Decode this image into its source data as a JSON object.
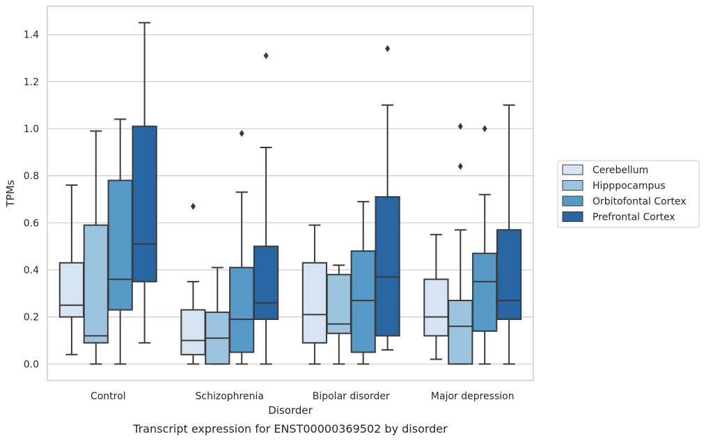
{
  "chart_data": {
    "type": "box",
    "caption": "Transcript expression for ENST00000369502 by disorder",
    "xlabel": "Disorder",
    "ylabel": "TPMs",
    "ylim": [
      -0.07,
      1.52
    ],
    "yticks": [
      "0.0",
      "0.2",
      "0.4",
      "0.6",
      "0.8",
      "1.0",
      "1.2",
      "1.4"
    ],
    "grid": "horizontal",
    "legend_position": "right",
    "categories": [
      "Control",
      "Schizophrenia",
      "Bipolar disorder",
      "Major depression"
    ],
    "series": [
      {
        "name": "Cerebellum",
        "color": "#d6e4f2",
        "boxes": [
          {
            "whisker_low": 0.04,
            "q1": 0.2,
            "median": 0.25,
            "q3": 0.43,
            "whisker_high": 0.76,
            "outliers": []
          },
          {
            "whisker_low": 0.0,
            "q1": 0.04,
            "median": 0.1,
            "q3": 0.23,
            "whisker_high": 0.35,
            "outliers": [
              0.67
            ]
          },
          {
            "whisker_low": 0.0,
            "q1": 0.09,
            "median": 0.21,
            "q3": 0.43,
            "whisker_high": 0.59,
            "outliers": []
          },
          {
            "whisker_low": 0.02,
            "q1": 0.12,
            "median": 0.2,
            "q3": 0.36,
            "whisker_high": 0.55,
            "outliers": []
          }
        ]
      },
      {
        "name": "Hipppocampus",
        "color": "#9cc4de",
        "boxes": [
          {
            "whisker_low": 0.0,
            "q1": 0.09,
            "median": 0.12,
            "q3": 0.59,
            "whisker_high": 0.99,
            "outliers": []
          },
          {
            "whisker_low": 0.0,
            "q1": 0.0,
            "median": 0.11,
            "q3": 0.22,
            "whisker_high": 0.41,
            "outliers": []
          },
          {
            "whisker_low": 0.0,
            "q1": 0.13,
            "median": 0.17,
            "q3": 0.38,
            "whisker_high": 0.42,
            "outliers": []
          },
          {
            "whisker_low": 0.0,
            "q1": 0.0,
            "median": 0.16,
            "q3": 0.27,
            "whisker_high": 0.57,
            "outliers": [
              0.84,
              1.01
            ]
          }
        ]
      },
      {
        "name": "Orbitofontal Cortex",
        "color": "#5599c7",
        "boxes": [
          {
            "whisker_low": 0.0,
            "q1": 0.23,
            "median": 0.36,
            "q3": 0.78,
            "whisker_high": 1.04,
            "outliers": []
          },
          {
            "whisker_low": 0.0,
            "q1": 0.05,
            "median": 0.19,
            "q3": 0.41,
            "whisker_high": 0.73,
            "outliers": [
              0.98
            ]
          },
          {
            "whisker_low": 0.0,
            "q1": 0.05,
            "median": 0.27,
            "q3": 0.48,
            "whisker_high": 0.69,
            "outliers": []
          },
          {
            "whisker_low": 0.0,
            "q1": 0.14,
            "median": 0.35,
            "q3": 0.47,
            "whisker_high": 0.72,
            "outliers": [
              1.0
            ]
          }
        ]
      },
      {
        "name": "Prefrontal Cortex",
        "color": "#2765a3",
        "boxes": [
          {
            "whisker_low": 0.09,
            "q1": 0.35,
            "median": 0.51,
            "q3": 1.01,
            "whisker_high": 1.45,
            "outliers": []
          },
          {
            "whisker_low": 0.0,
            "q1": 0.19,
            "median": 0.26,
            "q3": 0.5,
            "whisker_high": 0.92,
            "outliers": [
              1.31
            ]
          },
          {
            "whisker_low": 0.06,
            "q1": 0.12,
            "median": 0.37,
            "q3": 0.71,
            "whisker_high": 1.1,
            "outliers": [
              1.34
            ]
          },
          {
            "whisker_low": 0.0,
            "q1": 0.19,
            "median": 0.27,
            "q3": 0.57,
            "whisker_high": 1.1,
            "outliers": []
          }
        ]
      }
    ]
  }
}
